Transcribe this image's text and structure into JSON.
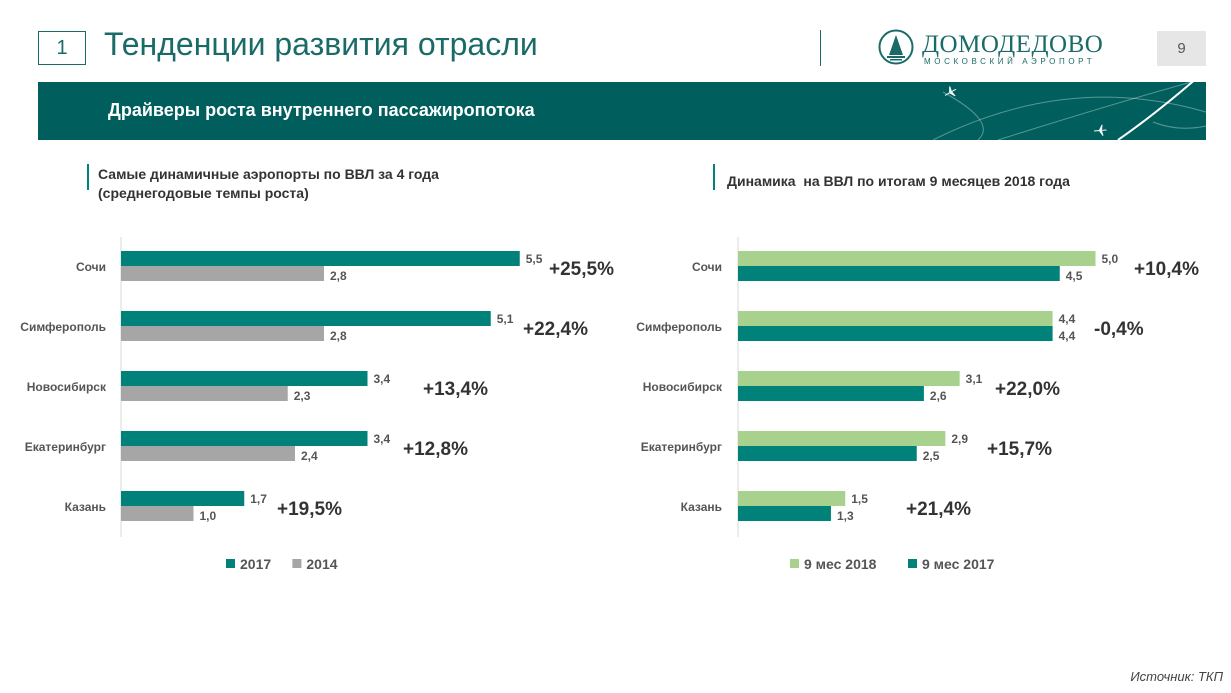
{
  "header": {
    "section_number": "1",
    "title": "Тенденции развития отрасли",
    "page_number": "9",
    "logo_name": "ДОМОДЕДОВО",
    "logo_subtitle": "МОСКОВСКИЙ АЭРОПОРТ"
  },
  "banner": {
    "text": "Драйверы роста внутреннего пассажиропотока"
  },
  "left_panel": {
    "heading_line1": "Самые динамичные аэропорты по ВВЛ за 4 года",
    "heading_line2": "(среднегодовые темпы роста)"
  },
  "right_panel": {
    "heading": "Динамика  на ВВЛ по итогам 9 месяцев 2018 года"
  },
  "footer": {
    "source": "Источник: ТКП"
  },
  "colors": {
    "teal": "#00827a",
    "gray": "#a6a6a6",
    "light_green": "#a9d18e",
    "brand": "#1a6b68"
  },
  "chart_data": [
    {
      "type": "bar",
      "orientation": "horizontal",
      "categories": [
        "Сочи",
        "Симферополь",
        "Новосибирск",
        "Екатеринбург",
        "Казань"
      ],
      "series": [
        {
          "name": "2017",
          "color": "#00827a",
          "values": [
            5.5,
            5.1,
            3.4,
            3.4,
            1.7
          ],
          "labels": [
            "5,5",
            "5,1",
            "3,4",
            "3,4",
            "1,7"
          ]
        },
        {
          "name": "2014",
          "color": "#a6a6a6",
          "values": [
            2.8,
            2.8,
            2.3,
            2.4,
            1.0
          ],
          "labels": [
            "2,8",
            "2,8",
            "2,3",
            "2,4",
            "1,0"
          ]
        }
      ],
      "annotations": [
        "+25,5%",
        "+22,4%",
        "+13,4%",
        "+12,8%",
        "+19,5%"
      ],
      "legend_position": "bottom",
      "grid": false
    },
    {
      "type": "bar",
      "orientation": "horizontal",
      "categories": [
        "Сочи",
        "Симферополь",
        "Новосибирск",
        "Екатеринбург",
        "Казань"
      ],
      "series": [
        {
          "name": "9 мес 2018",
          "color": "#a9d18e",
          "values": [
            5.0,
            4.4,
            3.1,
            2.9,
            1.5
          ],
          "labels": [
            "5,0",
            "4,4",
            "3,1",
            "2,9",
            "1,5"
          ]
        },
        {
          "name": "9 мес 2017",
          "color": "#00827a",
          "values": [
            4.5,
            4.4,
            2.6,
            2.5,
            1.3
          ],
          "labels": [
            "4,5",
            "4,4",
            "2,6",
            "2,5",
            "1,3"
          ]
        }
      ],
      "annotations": [
        "+10,4%",
        "-0,4%",
        "+22,0%",
        "+15,7%",
        "+21,4%"
      ],
      "legend_position": "bottom",
      "grid": false
    }
  ]
}
